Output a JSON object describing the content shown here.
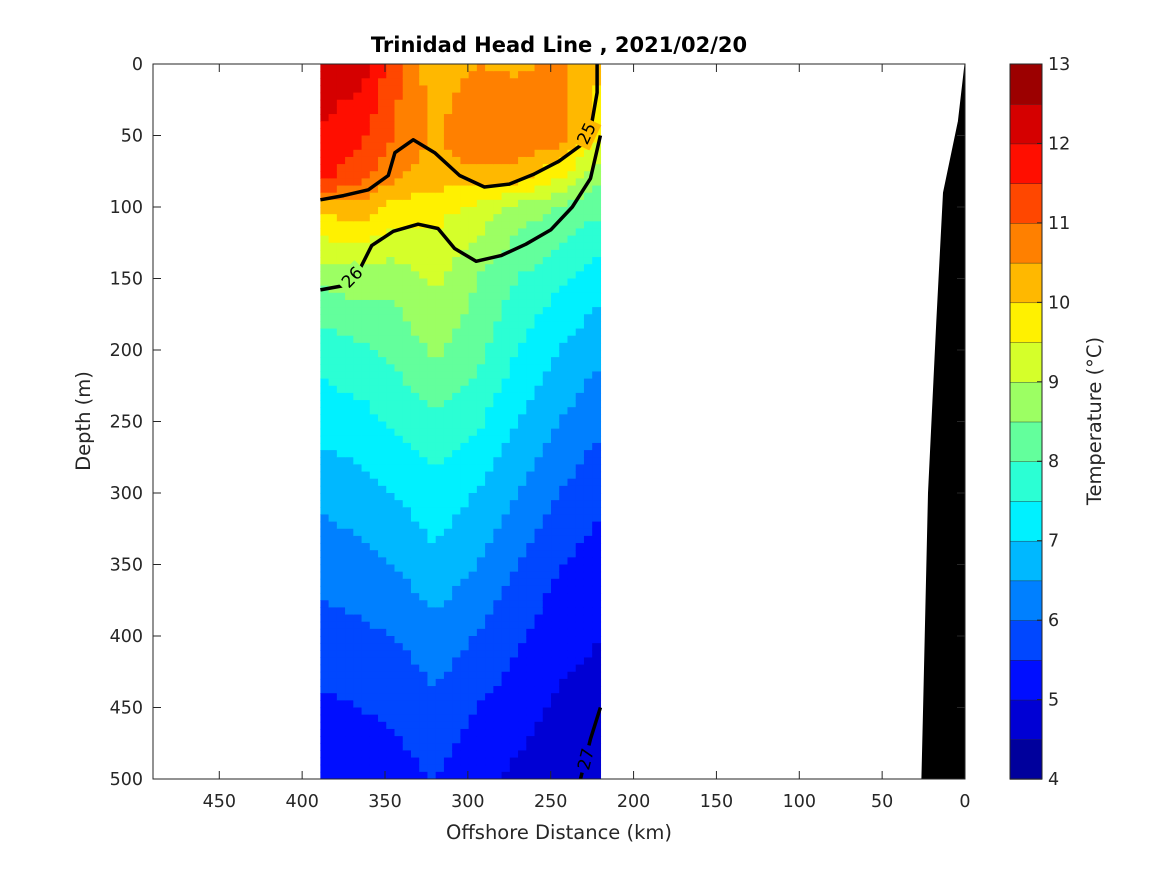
{
  "chart_data": {
    "type": "heatmap",
    "title": "Trinidad Head Line , 2021/02/20",
    "xlabel": "Offshore Distance (km)",
    "ylabel": "Depth (m)",
    "xlim": [
      490,
      0
    ],
    "ylim": [
      0,
      500
    ],
    "y_reversed": true,
    "x_ticks": [
      450,
      400,
      350,
      300,
      250,
      200,
      150,
      100,
      50,
      0
    ],
    "y_ticks": [
      0,
      50,
      100,
      150,
      200,
      250,
      300,
      350,
      400,
      450,
      500
    ],
    "colorbar": {
      "label": "Temperature (°C)",
      "min": 4,
      "max": 13,
      "step": 0.5,
      "ticks": [
        4,
        5,
        6,
        7,
        8,
        9,
        10,
        11,
        12,
        13
      ],
      "colormap": "jet"
    },
    "data_x_range_km": [
      389,
      220
    ],
    "temperature_columns": [
      {
        "x": 389,
        "depth": [
          0,
          50,
          80,
          100,
          150,
          200,
          250,
          300,
          350,
          400,
          450,
          500
        ],
        "temp": [
          12.2,
          12.0,
          11.6,
          10.2,
          8.6,
          7.7,
          7.2,
          6.6,
          6.2,
          5.8,
          5.4,
          5.1
        ]
      },
      {
        "x": 365,
        "depth": [
          0,
          50,
          80,
          100,
          150,
          200,
          250,
          300,
          350,
          400,
          450,
          500
        ],
        "temp": [
          12.3,
          11.6,
          11.2,
          10.3,
          8.8,
          7.9,
          7.3,
          6.8,
          6.3,
          5.9,
          5.5,
          5.2
        ]
      },
      {
        "x": 345,
        "depth": [
          0,
          50,
          80,
          100,
          150,
          200,
          250,
          300,
          350,
          400,
          450,
          500
        ],
        "temp": [
          11.2,
          11.0,
          10.6,
          9.8,
          8.7,
          8.1,
          7.6,
          7.0,
          6.5,
          6.0,
          5.6,
          5.3
        ]
      },
      {
        "x": 320,
        "depth": [
          0,
          50,
          80,
          100,
          150,
          200,
          250,
          300,
          350,
          400,
          450,
          500
        ],
        "temp": [
          10.2,
          10.4,
          10.2,
          9.7,
          9.1,
          8.6,
          7.9,
          7.3,
          6.9,
          6.3,
          5.9,
          5.5
        ]
      },
      {
        "x": 295,
        "depth": [
          0,
          50,
          80,
          100,
          150,
          200,
          250,
          300,
          350,
          400,
          450,
          500
        ],
        "temp": [
          10.5,
          11.0,
          10.3,
          9.4,
          8.5,
          8.2,
          7.6,
          7.0,
          6.5,
          6.0,
          5.5,
          5.1
        ]
      },
      {
        "x": 270,
        "depth": [
          0,
          50,
          80,
          100,
          150,
          200,
          250,
          300,
          350,
          400,
          450,
          500
        ],
        "temp": [
          10.4,
          11.0,
          10.2,
          8.8,
          8.0,
          7.5,
          7.0,
          6.5,
          6.0,
          5.6,
          5.2,
          4.9
        ]
      },
      {
        "x": 245,
        "depth": [
          0,
          50,
          80,
          100,
          150,
          200,
          250,
          300,
          350,
          400,
          450,
          500
        ],
        "temp": [
          10.6,
          10.8,
          9.5,
          8.5,
          7.6,
          7.0,
          6.5,
          6.0,
          5.5,
          5.2,
          4.9,
          4.7
        ]
      },
      {
        "x": 220,
        "depth": [
          0,
          50,
          80,
          100,
          150,
          200,
          250,
          300,
          350,
          400,
          450,
          500
        ],
        "temp": [
          10.1,
          9.6,
          8.5,
          8.1,
          7.2,
          6.6,
          6.1,
          5.6,
          5.3,
          5.0,
          4.8,
          4.5
        ]
      }
    ],
    "density_contours": [
      {
        "label": "25",
        "points": [
          [
            389,
            95
          ],
          [
            375,
            92
          ],
          [
            360,
            88
          ],
          [
            348,
            78
          ],
          [
            344,
            62
          ],
          [
            333,
            53
          ],
          [
            320,
            62
          ],
          [
            305,
            78
          ],
          [
            290,
            86
          ],
          [
            275,
            84
          ],
          [
            260,
            77
          ],
          [
            245,
            68
          ],
          [
            232,
            57
          ],
          [
            225,
            40
          ],
          [
            222,
            20
          ],
          [
            222,
            0
          ]
        ]
      },
      {
        "label": "26",
        "points": [
          [
            389,
            158
          ],
          [
            375,
            155
          ],
          [
            365,
            143
          ],
          [
            358,
            127
          ],
          [
            345,
            117
          ],
          [
            330,
            112
          ],
          [
            318,
            115
          ],
          [
            308,
            129
          ],
          [
            295,
            138
          ],
          [
            280,
            134
          ],
          [
            265,
            126
          ],
          [
            250,
            116
          ],
          [
            237,
            100
          ],
          [
            226,
            80
          ],
          [
            220,
            50
          ]
        ]
      },
      {
        "label": "27",
        "points": [
          [
            232,
            500
          ],
          [
            226,
            472
          ],
          [
            220,
            450
          ]
        ]
      }
    ],
    "bathymetry": [
      [
        26,
        500
      ],
      [
        25,
        450
      ],
      [
        22,
        300
      ],
      [
        17,
        180
      ],
      [
        13,
        90
      ],
      [
        4,
        40
      ],
      [
        0,
        0
      ]
    ]
  }
}
